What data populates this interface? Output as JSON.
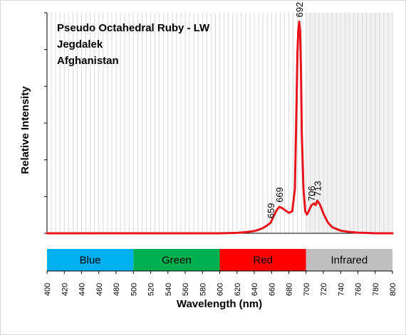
{
  "chart_data": {
    "type": "line",
    "title_lines": [
      "Pseudo Octahedral Ruby - LW",
      "Jegdalek",
      "Afghanistan"
    ],
    "xlabel": "Wavelength (nm)",
    "ylabel": "Relative Intensity",
    "xlim": [
      400,
      800
    ],
    "ylim": [
      0,
      100
    ],
    "x_ticks": [
      400,
      420,
      440,
      460,
      480,
      500,
      520,
      540,
      560,
      580,
      600,
      620,
      640,
      660,
      680,
      700,
      720,
      740,
      760,
      780,
      800
    ],
    "x_minor_grid_step": 5,
    "grid": true,
    "shaded_region": [
      700,
      800
    ],
    "series": [
      {
        "color": "#e8141b",
        "x": [
          400,
          500,
          600,
          620,
          630,
          640,
          645,
          650,
          655,
          659,
          662,
          666,
          669,
          672,
          676,
          680,
          684,
          687,
          689,
          690,
          691,
          692,
          693,
          694,
          695,
          697,
          699,
          701,
          703,
          706,
          709,
          711,
          713,
          716,
          720,
          725,
          730,
          740,
          750,
          760,
          780,
          800
        ],
        "y": [
          0,
          0,
          0,
          0.2,
          0.5,
          1,
          1.6,
          2.4,
          3.6,
          4.8,
          7.5,
          10.5,
          12,
          11.5,
          10.4,
          9.3,
          10,
          20,
          60,
          82,
          92,
          96,
          92,
          75,
          45,
          20,
          10,
          8.5,
          10,
          12.6,
          13.5,
          12.8,
          14.8,
          13,
          9,
          5,
          2.8,
          1.2,
          0.6,
          0.3,
          0,
          0
        ]
      }
    ],
    "annotations": [
      {
        "text": "659",
        "x": 659
      },
      {
        "text": "669",
        "x": 669
      },
      {
        "text": "692",
        "x": 692
      },
      {
        "text": "706",
        "x": 706
      },
      {
        "text": "713",
        "x": 713
      }
    ],
    "bands": [
      {
        "label": "Blue",
        "start": 400,
        "end": 500,
        "color": "#00b0f0"
      },
      {
        "label": "Green",
        "start": 500,
        "end": 600,
        "color": "#00b050"
      },
      {
        "label": "Red",
        "start": 600,
        "end": 700,
        "color": "#ff0000"
      },
      {
        "label": "Infrared",
        "start": 700,
        "end": 800,
        "color": "#bfbfbf"
      }
    ]
  }
}
